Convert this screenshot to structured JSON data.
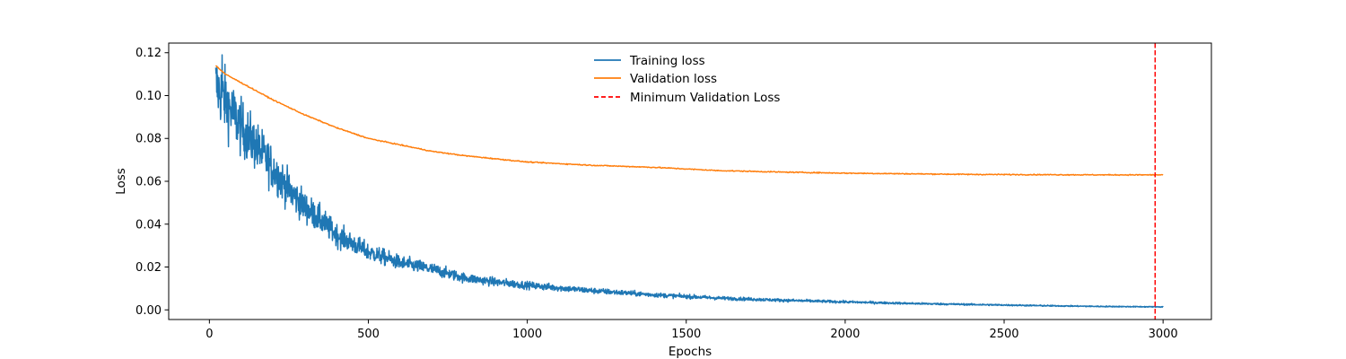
{
  "chart_data": {
    "type": "line",
    "title": "",
    "xlabel": "Epochs",
    "ylabel": "Loss",
    "xlim": [
      -128,
      3152
    ],
    "ylim": [
      -0.0045,
      0.1245
    ],
    "xticks": [
      0,
      500,
      1000,
      1500,
      2000,
      2500,
      3000
    ],
    "yticks": [
      0.0,
      0.02,
      0.04,
      0.06,
      0.08,
      0.1,
      0.12
    ],
    "ytick_labels": [
      "0.00",
      "0.02",
      "0.04",
      "0.06",
      "0.08",
      "0.10",
      "0.12"
    ],
    "grid": false,
    "legend": "top-center",
    "series": [
      {
        "name": "Training loss",
        "color": "#1f77b4",
        "x_range": [
          20,
          3000
        ],
        "points": [
          [
            20,
            0.105
          ],
          [
            40,
            0.1
          ],
          [
            60,
            0.095
          ],
          [
            80,
            0.09
          ],
          [
            100,
            0.085
          ],
          [
            150,
            0.076
          ],
          [
            200,
            0.066
          ],
          [
            250,
            0.056
          ],
          [
            300,
            0.048
          ],
          [
            350,
            0.042
          ],
          [
            400,
            0.035
          ],
          [
            450,
            0.031
          ],
          [
            500,
            0.027
          ],
          [
            600,
            0.022
          ],
          [
            700,
            0.019
          ],
          [
            800,
            0.015
          ],
          [
            900,
            0.013
          ],
          [
            1000,
            0.0115
          ],
          [
            1200,
            0.009
          ],
          [
            1400,
            0.007
          ],
          [
            1600,
            0.0055
          ],
          [
            1800,
            0.0045
          ],
          [
            2000,
            0.0037
          ],
          [
            2200,
            0.003
          ],
          [
            2400,
            0.0025
          ],
          [
            2600,
            0.002
          ],
          [
            2800,
            0.0016
          ],
          [
            3000,
            0.0014
          ]
        ],
        "max_value": 0.119
      },
      {
        "name": "Validation loss",
        "color": "#ff7f0e",
        "x_range": [
          20,
          3000
        ],
        "points": [
          [
            20,
            0.114
          ],
          [
            50,
            0.11
          ],
          [
            100,
            0.106
          ],
          [
            200,
            0.098
          ],
          [
            300,
            0.091
          ],
          [
            400,
            0.085
          ],
          [
            500,
            0.08
          ],
          [
            600,
            0.077
          ],
          [
            700,
            0.074
          ],
          [
            800,
            0.072
          ],
          [
            900,
            0.0705
          ],
          [
            1000,
            0.069
          ],
          [
            1200,
            0.0675
          ],
          [
            1400,
            0.0665
          ],
          [
            1600,
            0.065
          ],
          [
            1800,
            0.0643
          ],
          [
            2000,
            0.0638
          ],
          [
            2200,
            0.0635
          ],
          [
            2400,
            0.0632
          ],
          [
            2600,
            0.0631
          ],
          [
            2800,
            0.063
          ],
          [
            3000,
            0.063
          ]
        ]
      }
    ],
    "markers": [
      {
        "name": "Minimum Validation Loss",
        "type": "vline",
        "x": 2975,
        "color": "#ff0000",
        "style": "dashed"
      }
    ]
  }
}
